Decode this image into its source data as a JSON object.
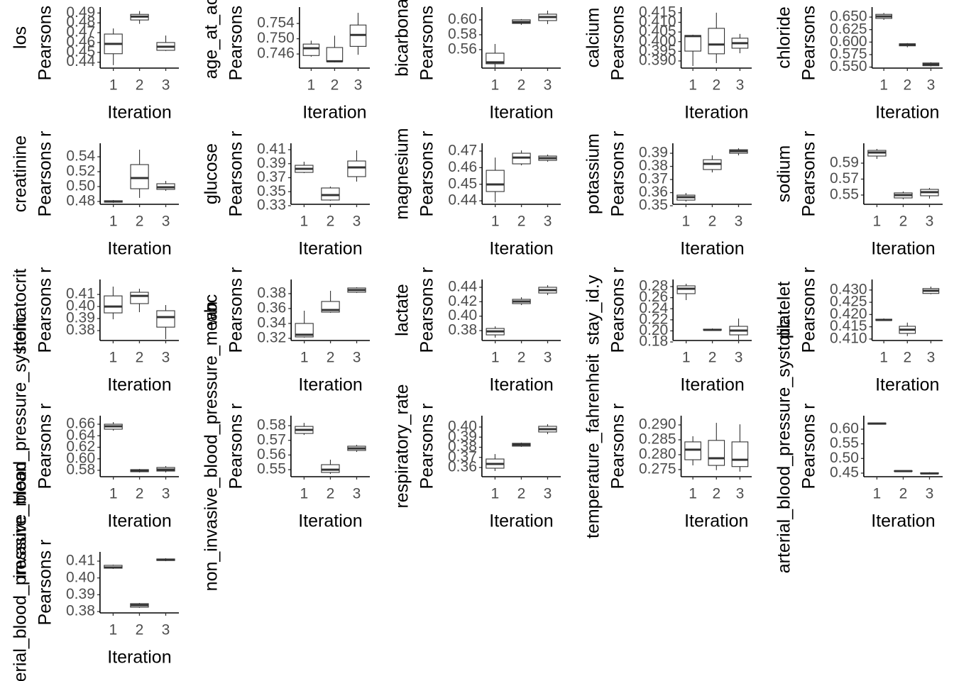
{
  "chart_data": [
    {
      "type": "box",
      "title": "los",
      "ylabel": "Pearsons r",
      "xlabel": "Iteration",
      "categories": [
        "1",
        "2",
        "3"
      ],
      "ylim": [
        0.434,
        0.496
      ],
      "yticks": [
        0.44,
        0.45,
        0.46,
        0.47,
        0.48,
        0.49
      ],
      "boxes": [
        {
          "min": 0.437,
          "q1": 0.4486,
          "median": 0.4586,
          "q3": 0.4686,
          "max": 0.4743
        },
        {
          "min": 0.479,
          "q1": 0.4829,
          "median": 0.4864,
          "q3": 0.4886,
          "max": 0.492
        },
        {
          "min": 0.4514,
          "q1": 0.4521,
          "median": 0.4557,
          "q3": 0.46,
          "max": 0.4671
        }
      ]
    },
    {
      "type": "box",
      "title": "age_at_ac",
      "ylabel": "Pearsons r",
      "xlabel": "Iteration",
      "categories": [
        "1",
        "2",
        "3"
      ],
      "ylim": [
        0.7423,
        0.7583
      ],
      "yticks": [
        0.746,
        {
          "value": 0.75,
          "label": "0.750"
        },
        0.754
      ],
      "boxes": [
        {
          "min": 0.7453,
          "q1": 0.7456,
          "median": 0.7475,
          "q3": 0.7486,
          "max": 0.7495
        },
        {
          "min": 0.7438,
          "q1": 0.744,
          "median": 0.7441,
          "q3": 0.7477,
          "max": 0.7508
        },
        {
          "min": 0.7458,
          "q1": 0.748,
          "median": 0.751,
          "q3": 0.7536,
          "max": 0.7568
        }
      ]
    },
    {
      "type": "box",
      "title": "bicarbona",
      "ylabel": "Pearsons r",
      "xlabel": "Iteration",
      "categories": [
        "1",
        "2",
        "3"
      ],
      "ylim": [
        0.5352,
        0.6171
      ],
      "yticks": [
        0.56,
        0.58,
        {
          "value": 0.6,
          "label": "0.60"
        }
      ],
      "boxes": [
        {
          "min": 0.5362,
          "q1": 0.541,
          "median": 0.5429,
          "q3": 0.5552,
          "max": 0.5676
        },
        {
          "min": 0.5933,
          "q1": 0.5952,
          "median": 0.5971,
          "q3": 0.6,
          "max": 0.601
        },
        {
          "min": 0.5943,
          "q1": 0.599,
          "median": 0.6038,
          "q3": 0.6076,
          "max": 0.6124
        }
      ]
    },
    {
      "type": "box",
      "title": "calcium",
      "ylabel": "Pearsons r",
      "xlabel": "Iteration",
      "categories": [
        "1",
        "2",
        "3"
      ],
      "ylim": [
        0.3863,
        0.4179
      ],
      "yticks": [
        {
          "value": 0.39,
          "label": "0.390"
        },
        0.395,
        {
          "value": 0.4,
          "label": "0.400"
        },
        0.405,
        {
          "value": 0.41,
          "label": "0.410"
        },
        0.415
      ],
      "boxes": [
        {
          "min": 0.3874,
          "q1": 0.3951,
          "median": 0.4029,
          "q3": 0.4032,
          "max": 0.4036
        },
        {
          "min": 0.3889,
          "q1": 0.3937,
          "median": 0.3985,
          "q3": 0.4069,
          "max": 0.415
        },
        {
          "min": 0.394,
          "q1": 0.3966,
          "median": 0.3992,
          "q3": 0.4018,
          "max": 0.404
        }
      ]
    },
    {
      "type": "box",
      "title": "chloride",
      "ylabel": "Pearsons r",
      "xlabel": "Iteration",
      "categories": [
        "1",
        "2",
        "3"
      ],
      "ylim": [
        0.548,
        0.67
      ],
      "yticks": [
        {
          "value": 0.55,
          "label": "0.550"
        },
        0.575,
        {
          "value": 0.6,
          "label": "0.600"
        },
        0.625,
        {
          "value": 0.65,
          "label": "0.650"
        }
      ],
      "boxes": [
        {
          "min": 0.6445,
          "q1": 0.6473,
          "median": 0.6514,
          "q3": 0.6555,
          "max": 0.6582
        },
        {
          "min": 0.5897,
          "q1": 0.5925,
          "median": 0.5952,
          "q3": 0.5966,
          "max": 0.598
        },
        {
          "min": 0.5514,
          "q1": 0.5527,
          "median": 0.5555,
          "q3": 0.5582,
          "max": 0.5596
        }
      ]
    },
    {
      "type": "box",
      "title": "creatinine",
      "ylabel": "Pearsons r",
      "xlabel": "Iteration",
      "categories": [
        "1",
        "2",
        "3"
      ],
      "ylim": [
        0.4762,
        0.5581
      ],
      "yticks": [
        0.48,
        {
          "value": 0.5,
          "label": "0.50"
        },
        0.52,
        0.54
      ],
      "boxes": [
        {
          "min": 0.4781,
          "q1": 0.479,
          "median": 0.48,
          "q3": 0.481,
          "max": 0.4819
        },
        {
          "min": 0.4848,
          "q1": 0.4971,
          "median": 0.5114,
          "q3": 0.5295,
          "max": 0.5495
        },
        {
          "min": 0.4943,
          "q1": 0.4962,
          "median": 0.499,
          "q3": 0.5038,
          "max": 0.5076
        }
      ]
    },
    {
      "type": "box",
      "title": "glucose",
      "ylabel": "Pearsons r",
      "xlabel": "Iteration",
      "categories": [
        "1",
        "2",
        "3"
      ],
      "ylim": [
        0.332,
        0.4191
      ],
      "yticks": [
        0.33,
        0.35,
        0.37,
        0.39,
        0.41
      ],
      "boxes": [
        {
          "min": 0.3766,
          "q1": 0.3776,
          "median": 0.3827,
          "q3": 0.3877,
          "max": 0.3928
        },
        {
          "min": 0.3371,
          "q1": 0.3381,
          "median": 0.3452,
          "q3": 0.3553,
          "max": 0.3573
        },
        {
          "min": 0.3644,
          "q1": 0.3715,
          "median": 0.3847,
          "q3": 0.3938,
          "max": 0.409
        }
      ]
    },
    {
      "type": "box",
      "title": "magnesium",
      "ylabel": "Pearsons r",
      "xlabel": "Iteration",
      "categories": [
        "1",
        "2",
        "3"
      ],
      "ylim": [
        0.4379,
        0.4747
      ],
      "yticks": [
        0.44,
        0.45,
        0.46,
        0.47
      ],
      "boxes": [
        {
          "min": 0.4391,
          "q1": 0.4456,
          "median": 0.4499,
          "q3": 0.4584,
          "max": 0.4661
        },
        {
          "min": 0.4614,
          "q1": 0.4623,
          "median": 0.4661,
          "q3": 0.4687,
          "max": 0.4704
        },
        {
          "min": 0.4636,
          "q1": 0.4644,
          "median": 0.4657,
          "q3": 0.467,
          "max": 0.4679
        }
      ]
    },
    {
      "type": "box",
      "title": "potassium",
      "ylabel": "Pearsons r",
      "xlabel": "Iteration",
      "categories": [
        "1",
        "2",
        "3"
      ],
      "ylim": [
        0.3511,
        0.3976
      ],
      "yticks": [
        0.35,
        0.36,
        0.37,
        0.38,
        0.39
      ],
      "boxes": [
        {
          "min": 0.3532,
          "q1": 0.3543,
          "median": 0.3565,
          "q3": 0.3581,
          "max": 0.3597
        },
        {
          "min": 0.3754,
          "q1": 0.3776,
          "median": 0.3819,
          "q3": 0.3851,
          "max": 0.3884
        },
        {
          "min": 0.3884,
          "q1": 0.39,
          "median": 0.3916,
          "q3": 0.3927,
          "max": 0.3938
        }
      ]
    },
    {
      "type": "box",
      "title": "sodium",
      "ylabel": "Pearsons r",
      "xlabel": "Iteration",
      "categories": [
        "1",
        "2",
        "3"
      ],
      "ylim": [
        0.5384,
        0.6149
      ],
      "yticks": [
        0.55,
        0.57,
        0.59
      ],
      "boxes": [
        {
          "min": 0.5953,
          "q1": 0.5989,
          "median": 0.6033,
          "q3": 0.606,
          "max": 0.6078
        },
        {
          "min": 0.5447,
          "q1": 0.5464,
          "median": 0.55,
          "q3": 0.5527,
          "max": 0.5544
        },
        {
          "min": 0.5456,
          "q1": 0.5491,
          "median": 0.5536,
          "q3": 0.5571,
          "max": 0.5589
        }
      ]
    },
    {
      "type": "box",
      "title": "hematocrit",
      "ylabel": "Pearsons r",
      "xlabel": "Iteration",
      "categories": [
        "1",
        "2",
        "3"
      ],
      "ylim": [
        0.3718,
        0.4224
      ],
      "yticks": [
        0.38,
        0.39,
        {
          "value": 0.4,
          "label": "0.40"
        },
        0.41
      ],
      "boxes": [
        {
          "min": 0.3894,
          "q1": 0.3947,
          "median": 0.4,
          "q3": 0.4088,
          "max": 0.4165
        },
        {
          "min": 0.3953,
          "q1": 0.4024,
          "median": 0.4088,
          "q3": 0.4118,
          "max": 0.4147
        },
        {
          "min": 0.3729,
          "q1": 0.3829,
          "median": 0.3912,
          "q3": 0.3965,
          "max": 0.4012
        }
      ]
    },
    {
      "type": "box",
      "title": "wbc",
      "ylabel": "Pearsons r",
      "xlabel": "Iteration",
      "categories": [
        "1",
        "2",
        "3"
      ],
      "ylim": [
        0.3171,
        0.399
      ],
      "yticks": [
        0.32,
        0.34,
        0.36,
        0.38
      ],
      "boxes": [
        {
          "min": 0.321,
          "q1": 0.3219,
          "median": 0.3248,
          "q3": 0.34,
          "max": 0.3571
        },
        {
          "min": 0.3543,
          "q1": 0.3552,
          "median": 0.3581,
          "q3": 0.3695,
          "max": 0.3838
        },
        {
          "min": 0.381,
          "q1": 0.3819,
          "median": 0.3848,
          "q3": 0.3876,
          "max": 0.3886
        }
      ]
    },
    {
      "type": "box",
      "title": "lactate",
      "ylabel": "Pearsons r",
      "xlabel": "Iteration",
      "categories": [
        "1",
        "2",
        "3"
      ],
      "ylim": [
        0.3663,
        0.4508
      ],
      "yticks": [
        0.38,
        {
          "value": 0.4,
          "label": "0.40"
        },
        0.42,
        0.44
      ],
      "boxes": [
        {
          "min": 0.3702,
          "q1": 0.3741,
          "median": 0.379,
          "q3": 0.383,
          "max": 0.3859
        },
        {
          "min": 0.4154,
          "q1": 0.4174,
          "median": 0.4203,
          "q3": 0.4233,
          "max": 0.4262
        },
        {
          "min": 0.4292,
          "q1": 0.4321,
          "median": 0.4361,
          "q3": 0.44,
          "max": 0.4429
        }
      ]
    },
    {
      "type": "box",
      "title": "stay_id.y",
      "ylabel": "Pearsons r",
      "xlabel": "Iteration",
      "categories": [
        "1",
        "2",
        "3"
      ],
      "ylim": [
        0.1826,
        0.2928
      ],
      "yticks": [
        0.18,
        {
          "value": 0.2,
          "label": "0.20"
        },
        0.22,
        0.24,
        0.26,
        0.28
      ],
      "boxes": [
        {
          "min": 0.2556,
          "q1": 0.2672,
          "median": 0.2762,
          "q3": 0.2813,
          "max": 0.2851
        },
        {
          "min": 0.2005,
          "q1": 0.2012,
          "median": 0.2018,
          "q3": 0.2031,
          "max": 0.2044
        },
        {
          "min": 0.1838,
          "q1": 0.1928,
          "median": 0.2005,
          "q3": 0.2082,
          "max": 0.2223
        }
      ]
    },
    {
      "type": "box",
      "title": "platelet",
      "ylabel": "Pearsons r",
      "xlabel": "Iteration",
      "categories": [
        "1",
        "2",
        "3"
      ],
      "ylim": [
        0.4094,
        0.4343
      ],
      "yticks": [
        {
          "value": 0.41,
          "label": "0.410"
        },
        0.415,
        {
          "value": 0.42,
          "label": "0.420"
        },
        0.425,
        {
          "value": 0.43,
          "label": "0.430"
        }
      ],
      "boxes": [
        {
          "min": 0.4175,
          "q1": 0.4176,
          "median": 0.4178,
          "q3": 0.4181,
          "max": 0.4184
        },
        {
          "min": 0.4112,
          "q1": 0.4123,
          "median": 0.4138,
          "q3": 0.4152,
          "max": 0.4167
        },
        {
          "min": 0.4283,
          "q1": 0.4286,
          "median": 0.4297,
          "q3": 0.4306,
          "max": 0.4314
        }
      ]
    },
    {
      "type": "box",
      "title": "invasive_blood_pressure_systolic",
      "ylabel": "Pearsons r",
      "xlabel": "Iteration",
      "categories": [
        "1",
        "2",
        "3"
      ],
      "ylim": [
        0.5689,
        0.6748
      ],
      "yticks": [
        0.58,
        {
          "value": 0.6,
          "label": "0.60"
        },
        0.62,
        0.64,
        0.66
      ],
      "boxes": [
        {
          "min": 0.6489,
          "q1": 0.6514,
          "median": 0.6563,
          "q3": 0.66,
          "max": 0.6637
        },
        {
          "min": 0.5763,
          "q1": 0.5775,
          "median": 0.58,
          "q3": 0.5812,
          "max": 0.5824
        },
        {
          "min": 0.5763,
          "q1": 0.5787,
          "median": 0.5812,
          "q3": 0.5849,
          "max": 0.5873
        }
      ]
    },
    {
      "type": "box",
      "title": "non_invasive_blood_pressure_mean",
      "ylabel": "Pearsons r",
      "xlabel": "Iteration",
      "categories": [
        "1",
        "2",
        "3"
      ],
      "ylim": [
        0.5452,
        0.5868
      ],
      "yticks": [
        0.55,
        0.56,
        0.57,
        0.58
      ],
      "boxes": [
        {
          "min": 0.5737,
          "q1": 0.5747,
          "median": 0.5771,
          "q3": 0.5795,
          "max": 0.5819
        },
        {
          "min": 0.5471,
          "q1": 0.5481,
          "median": 0.55,
          "q3": 0.5534,
          "max": 0.5568
        },
        {
          "min": 0.5621,
          "q1": 0.5631,
          "median": 0.5645,
          "q3": 0.566,
          "max": 0.5669
        }
      ]
    },
    {
      "type": "box",
      "title": "respiratory_rate",
      "ylabel": "Pearsons r",
      "xlabel": "Iteration",
      "categories": [
        "1",
        "2",
        "3"
      ],
      "ylim": [
        0.3509,
        0.4112
      ],
      "yticks": [
        0.36,
        0.37,
        0.38,
        0.39,
        {
          "value": 0.4,
          "label": "0.40"
        }
      ],
      "boxes": [
        {
          "min": 0.3565,
          "q1": 0.3593,
          "median": 0.3635,
          "q3": 0.3684,
          "max": 0.3733
        },
        {
          "min": 0.3804,
          "q1": 0.3811,
          "median": 0.3825,
          "q3": 0.3839,
          "max": 0.3846
        },
        {
          "min": 0.393,
          "q1": 0.3951,
          "median": 0.3979,
          "q3": 0.4007,
          "max": 0.4028
        }
      ]
    },
    {
      "type": "box",
      "title": "temperature_fahrenheit",
      "ylabel": "Pearsons r",
      "xlabel": "Iteration",
      "categories": [
        "1",
        "2",
        "3"
      ],
      "ylim": [
        0.2726,
        0.2931
      ],
      "yticks": [
        0.275,
        {
          "value": 0.28,
          "label": "0.280"
        },
        0.285,
        {
          "value": 0.29,
          "label": "0.290"
        }
      ],
      "boxes": [
        {
          "min": 0.2764,
          "q1": 0.2783,
          "median": 0.2817,
          "q3": 0.2843,
          "max": 0.2862
        },
        {
          "min": 0.2748,
          "q1": 0.2764,
          "median": 0.2788,
          "q3": 0.2848,
          "max": 0.2907
        },
        {
          "min": 0.2743,
          "q1": 0.276,
          "median": 0.2783,
          "q3": 0.2843,
          "max": 0.2902
        }
      ]
    },
    {
      "type": "box",
      "title": "arterial_blood_pressure_systolic",
      "ylabel": "Pearsons r",
      "xlabel": "Iteration",
      "categories": [
        "1",
        "2",
        "3"
      ],
      "ylim": [
        0.4378,
        0.646
      ],
      "yticks": [
        0.45,
        {
          "value": 0.5,
          "label": "0.50"
        },
        0.55,
        {
          "value": 0.6,
          "label": "0.60"
        }
      ],
      "boxes": [
        {
          "min": 0.616,
          "q1": 0.617,
          "median": 0.619,
          "q3": 0.621,
          "max": 0.622
        },
        {
          "min": 0.455,
          "q1": 0.456,
          "median": 0.457,
          "q3": 0.458,
          "max": 0.459
        },
        {
          "min": 0.446,
          "q1": 0.448,
          "median": 0.449,
          "q3": 0.451,
          "max": 0.453
        }
      ]
    },
    {
      "type": "box",
      "title": "arterial_blood_pressure_mean",
      "ylabel": "Pearsons r",
      "xlabel": "Iteration",
      "categories": [
        "1",
        "2",
        "3"
      ],
      "ylim": [
        0.3792,
        0.4155
      ],
      "yticks": [
        0.38,
        0.39,
        {
          "value": 0.4,
          "label": "0.40"
        },
        0.41
      ],
      "boxes": [
        {
          "min": 0.4054,
          "q1": 0.4058,
          "median": 0.4062,
          "q3": 0.4075,
          "max": 0.4079
        },
        {
          "min": 0.3822,
          "q1": 0.3826,
          "median": 0.3838,
          "q3": 0.3847,
          "max": 0.3851
        },
        {
          "min": 0.41,
          "q1": 0.4104,
          "median": 0.4108,
          "q3": 0.4113,
          "max": 0.4117
        }
      ]
    }
  ]
}
